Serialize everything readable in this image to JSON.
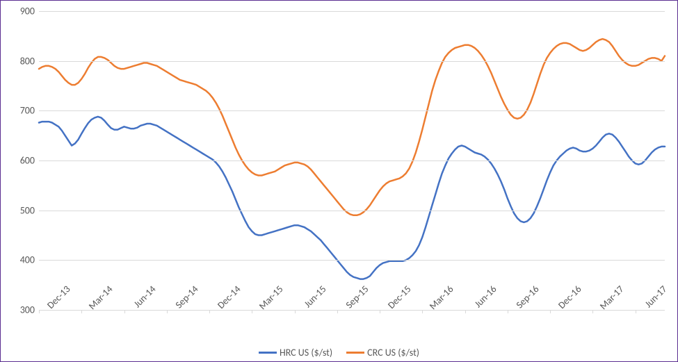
{
  "chart": {
    "type": "line",
    "border_color": "#5b2d90",
    "background_color": "#ffffff",
    "grid_color": "#d9d9d9",
    "axis_font_color": "#595959",
    "axis_font_size_pt": 10,
    "ylim": [
      300,
      900
    ],
    "ytick_step": 100,
    "yticks": [
      300,
      400,
      500,
      600,
      700,
      800,
      900
    ],
    "x_labels": [
      "Dec-13",
      "Mar-14",
      "Jun-14",
      "Sep-14",
      "Dec-14",
      "Mar-15",
      "Jun-15",
      "Sep-15",
      "Dec-15",
      "Mar-16",
      "Jun-16",
      "Sep-16",
      "Dec-16",
      "Mar-17",
      "Jun-17"
    ],
    "x_label_interval_points": 13,
    "n_points": 192,
    "line_width": 2.5,
    "series": [
      {
        "name": "HRC US ($/st)",
        "color": "#4472c4",
        "values": [
          676,
          678,
          678,
          678,
          676,
          672,
          668,
          660,
          650,
          640,
          630,
          634,
          642,
          654,
          665,
          675,
          682,
          686,
          688,
          686,
          680,
          672,
          665,
          662,
          662,
          665,
          668,
          666,
          664,
          664,
          666,
          670,
          672,
          674,
          674,
          672,
          670,
          666,
          662,
          658,
          654,
          650,
          646,
          642,
          638,
          634,
          630,
          626,
          622,
          618,
          614,
          610,
          606,
          602,
          596,
          588,
          578,
          566,
          552,
          538,
          522,
          506,
          492,
          478,
          466,
          458,
          452,
          450,
          450,
          452,
          454,
          456,
          458,
          460,
          462,
          464,
          466,
          468,
          470,
          470,
          468,
          466,
          462,
          458,
          452,
          446,
          440,
          432,
          424,
          416,
          408,
          400,
          392,
          384,
          376,
          370,
          366,
          364,
          362,
          362,
          364,
          368,
          376,
          384,
          390,
          394,
          396,
          398,
          398,
          398,
          398,
          398,
          400,
          404,
          410,
          418,
          430,
          446,
          466,
          488,
          510,
          532,
          554,
          574,
          590,
          604,
          614,
          622,
          628,
          630,
          628,
          624,
          620,
          616,
          614,
          612,
          608,
          602,
          594,
          584,
          572,
          558,
          542,
          524,
          508,
          494,
          484,
          478,
          476,
          478,
          484,
          494,
          508,
          524,
          542,
          560,
          576,
          590,
          600,
          608,
          614,
          620,
          624,
          626,
          624,
          620,
          618,
          618,
          620,
          624,
          630,
          638,
          646,
          652,
          654,
          652,
          646,
          638,
          628,
          618,
          608,
          600,
          594,
          592,
          594,
          600,
          608,
          616,
          622,
          626,
          628,
          628
        ]
      },
      {
        "name": "CRC US ($/st)",
        "color": "#ed7d31",
        "values": [
          784,
          788,
          790,
          790,
          788,
          784,
          778,
          770,
          762,
          756,
          752,
          752,
          756,
          764,
          774,
          786,
          796,
          804,
          808,
          808,
          806,
          802,
          796,
          790,
          786,
          784,
          784,
          786,
          788,
          790,
          792,
          794,
          796,
          796,
          794,
          792,
          790,
          786,
          782,
          778,
          774,
          770,
          766,
          762,
          760,
          758,
          756,
          754,
          752,
          748,
          744,
          740,
          734,
          726,
          716,
          704,
          690,
          674,
          658,
          642,
          626,
          612,
          600,
          590,
          582,
          576,
          572,
          570,
          570,
          572,
          574,
          576,
          578,
          582,
          586,
          590,
          592,
          594,
          596,
          596,
          594,
          592,
          588,
          582,
          574,
          566,
          558,
          550,
          542,
          534,
          526,
          518,
          510,
          502,
          496,
          492,
          490,
          490,
          492,
          496,
          502,
          510,
          520,
          530,
          540,
          548,
          554,
          558,
          560,
          562,
          564,
          568,
          574,
          584,
          598,
          616,
          638,
          662,
          688,
          714,
          740,
          762,
          780,
          796,
          808,
          816,
          822,
          826,
          828,
          830,
          832,
          832,
          830,
          826,
          820,
          812,
          802,
          790,
          776,
          760,
          744,
          728,
          714,
          702,
          692,
          686,
          684,
          686,
          692,
          702,
          716,
          734,
          754,
          774,
          792,
          806,
          816,
          824,
          830,
          834,
          836,
          836,
          834,
          830,
          826,
          822,
          820,
          822,
          826,
          832,
          838,
          842,
          844,
          842,
          838,
          830,
          820,
          810,
          802,
          796,
          792,
          790,
          790,
          792,
          796,
          800,
          804,
          806,
          806,
          804,
          800,
          810
        ]
      }
    ],
    "legend": {
      "position": "bottom",
      "font_size_pt": 10
    }
  }
}
